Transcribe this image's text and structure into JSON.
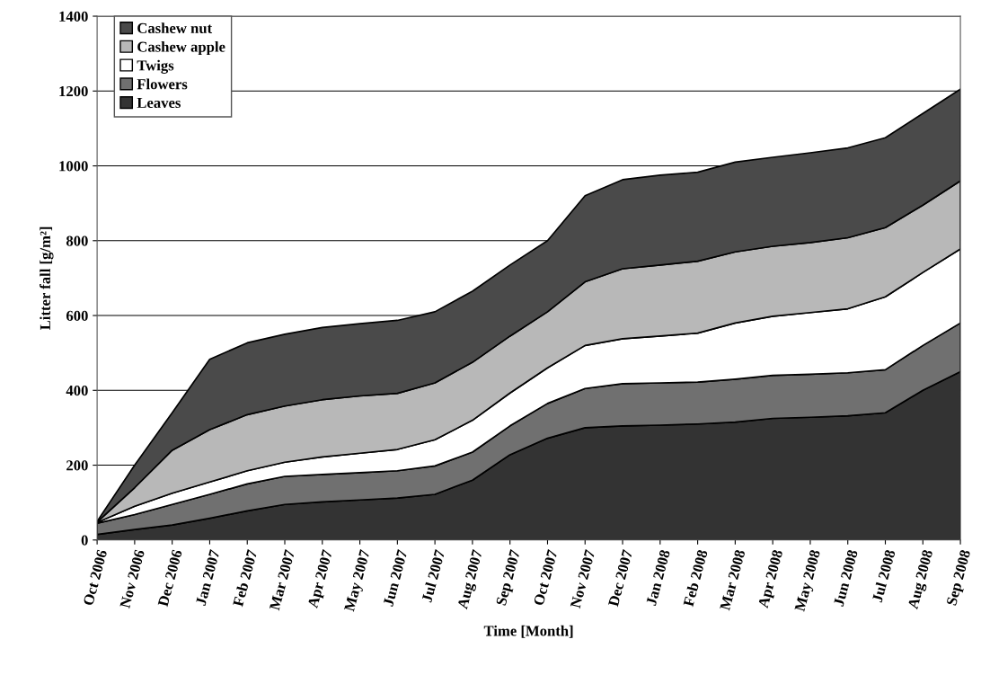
{
  "chart_data": {
    "type": "area",
    "stacked": true,
    "xlabel": "Time [Month]",
    "ylabel": "Litter fall [g/m²]",
    "categories": [
      "Oct 2006",
      "Nov 2006",
      "Dec 2006",
      "Jan 2007",
      "Feb 2007",
      "Mar 2007",
      "Apr 2007",
      "May 2007",
      "Jun 2007",
      "Jul 2007",
      "Aug 2007",
      "Sep 2007",
      "Oct 2007",
      "Nov 2007",
      "Dec 2007",
      "Jan 2008",
      "Feb 2008",
      "Mar 2008",
      "Apr 2008",
      "May 2008",
      "Jun 2008",
      "Jul 2008",
      "Aug 2008",
      "Sep 2008"
    ],
    "series": [
      {
        "name": "Leaves",
        "color": "#333333",
        "values": [
          15,
          28,
          40,
          58,
          78,
          95,
          102,
          107,
          112,
          122,
          160,
          228,
          272,
          300,
          305,
          307,
          310,
          315,
          325,
          328,
          332,
          340,
          400,
          450
        ]
      },
      {
        "name": "Flowers",
        "color": "#707070",
        "values": [
          30,
          40,
          55,
          64,
          72,
          75,
          73,
          73,
          73,
          76,
          75,
          77,
          93,
          105,
          113,
          113,
          112,
          115,
          115,
          115,
          115,
          115,
          120,
          130
        ]
      },
      {
        "name": "Twigs",
        "color": "#ffffff",
        "values": [
          2,
          22,
          30,
          33,
          35,
          38,
          47,
          52,
          57,
          70,
          85,
          88,
          95,
          115,
          120,
          125,
          131,
          150,
          158,
          165,
          171,
          195,
          195,
          198
        ]
      },
      {
        "name": "Cashew apple",
        "color": "#b8b8b8",
        "values": [
          1,
          50,
          115,
          140,
          150,
          150,
          153,
          153,
          150,
          152,
          155,
          152,
          150,
          170,
          187,
          190,
          192,
          190,
          187,
          187,
          190,
          185,
          180,
          182
        ]
      },
      {
        "name": "Cashew nut",
        "color": "#4a4a4a",
        "values": [
          2,
          60,
          100,
          188,
          192,
          192,
          193,
          193,
          195,
          190,
          190,
          190,
          190,
          230,
          238,
          240,
          238,
          240,
          238,
          240,
          240,
          240,
          245,
          245
        ]
      }
    ],
    "ylim": [
      0,
      1400
    ],
    "yticks": [
      0,
      200,
      400,
      600,
      800,
      1000,
      1200,
      1400
    ],
    "grid": "y",
    "legend": "top left"
  }
}
